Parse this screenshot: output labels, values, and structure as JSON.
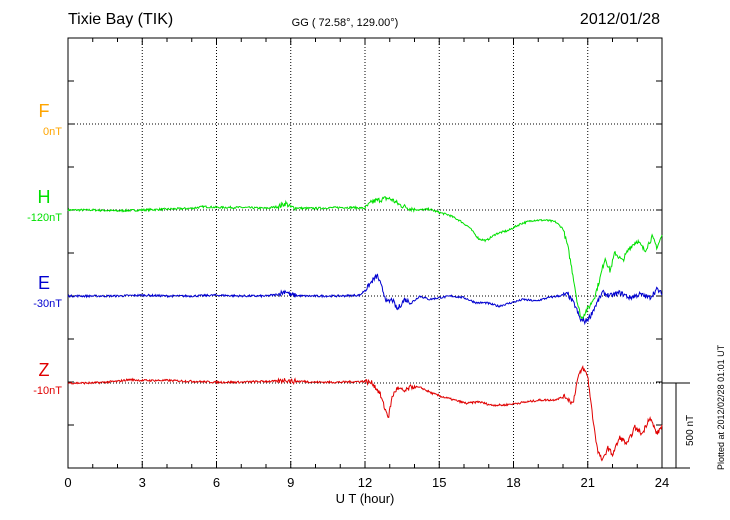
{
  "header": {
    "station": "Tixie Bay (TIK)",
    "coords": "GG ( 72.58°, 129.00°)",
    "date": "2012/01/28"
  },
  "footer": {
    "plotted": "Plotted at 2012/02/28 01:01 UT",
    "scale_label": "500 nT"
  },
  "colors": {
    "F": "#ffa500",
    "H": "#00e000",
    "E": "#0000d0",
    "Z": "#e00000"
  },
  "chart_data": {
    "type": "line",
    "xlabel": "U T (hour)",
    "xlim": [
      0,
      24
    ],
    "xticks": [
      "0",
      "3",
      "6",
      "9",
      "12",
      "15",
      "18",
      "21",
      "24"
    ],
    "scale_bar_nT": 500,
    "series": [
      {
        "name": "F",
        "baseline_label": "0nT",
        "x": [],
        "y": []
      },
      {
        "name": "H",
        "baseline_label": "-120nT",
        "x": [
          0,
          1,
          2,
          3,
          4,
          5,
          5.5,
          6,
          7,
          8,
          8.5,
          8.8,
          9,
          9.5,
          10,
          11,
          11.5,
          12,
          12.3,
          12.6,
          12.9,
          13.1,
          13.4,
          13.8,
          14.2,
          14.6,
          15,
          15.4,
          15.8,
          16.2,
          16.6,
          16.9,
          17.3,
          17.8,
          18.3,
          18.8,
          19.3,
          19.7,
          20.0,
          20.2,
          20.4,
          20.6,
          20.75,
          20.9,
          21.1,
          21.3,
          21.5,
          21.7,
          21.9,
          22.1,
          22.4,
          22.7,
          23.0,
          23.3,
          23.6,
          23.8,
          24
        ],
        "y": [
          0,
          0,
          -5,
          0,
          5,
          10,
          20,
          15,
          15,
          10,
          20,
          40,
          15,
          10,
          10,
          15,
          15,
          10,
          50,
          60,
          70,
          60,
          30,
          10,
          0,
          5,
          -15,
          -30,
          -60,
          -100,
          -170,
          -180,
          -140,
          -120,
          -80,
          -60,
          -60,
          -70,
          -110,
          -220,
          -380,
          -560,
          -640,
          -600,
          -560,
          -500,
          -400,
          -280,
          -360,
          -250,
          -300,
          -220,
          -180,
          -240,
          -160,
          -220,
          -150
        ]
      },
      {
        "name": "E",
        "baseline_label": "-30nT",
        "x": [
          0,
          1,
          2,
          3,
          4,
          5,
          6,
          7,
          8,
          8.5,
          8.8,
          9,
          9.5,
          10,
          11,
          11.8,
          12.1,
          12.3,
          12.5,
          12.7,
          12.9,
          13.1,
          13.3,
          13.6,
          13.9,
          14.2,
          14.6,
          15,
          15.5,
          16,
          16.5,
          16.9,
          17.4,
          17.9,
          18.4,
          18.9,
          19.4,
          19.8,
          20.2,
          20.5,
          20.7,
          20.9,
          21.1,
          21.3,
          21.6,
          21.9,
          22.3,
          22.7,
          23.1,
          23.5,
          23.8,
          24
        ],
        "y": [
          0,
          0,
          0,
          5,
          0,
          0,
          5,
          0,
          0,
          10,
          30,
          5,
          0,
          0,
          0,
          5,
          50,
          90,
          120,
          40,
          -40,
          -20,
          -80,
          -20,
          -40,
          0,
          -20,
          -10,
          0,
          -10,
          -40,
          -40,
          -60,
          -40,
          -20,
          -30,
          -10,
          0,
          10,
          -60,
          -140,
          -150,
          -120,
          -60,
          20,
          0,
          20,
          -10,
          10,
          -10,
          40,
          10
        ]
      },
      {
        "name": "Z",
        "baseline_label": "-10nT",
        "x": [
          0,
          1,
          2,
          2.5,
          3,
          4,
          5,
          6,
          7,
          8,
          8.5,
          8.8,
          9,
          9.5,
          10,
          11,
          12,
          12.3,
          12.6,
          12.8,
          12.95,
          13.1,
          13.3,
          13.6,
          13.9,
          14.3,
          14.7,
          15.1,
          15.6,
          16.1,
          16.6,
          17.1,
          17.6,
          18.1,
          18.6,
          19.1,
          19.6,
          20.1,
          20.4,
          20.6,
          20.8,
          21.0,
          21.2,
          21.4,
          21.6,
          21.8,
          22.0,
          22.3,
          22.6,
          22.9,
          23.2,
          23.5,
          23.8,
          24
        ],
        "y": [
          0,
          0,
          10,
          20,
          15,
          15,
          10,
          5,
          5,
          10,
          10,
          20,
          10,
          10,
          5,
          5,
          10,
          0,
          -60,
          -150,
          -200,
          -80,
          -30,
          -50,
          -20,
          -30,
          -60,
          -80,
          -100,
          -120,
          -110,
          -130,
          -130,
          -120,
          -110,
          -100,
          -100,
          -80,
          -120,
          30,
          90,
          40,
          -200,
          -400,
          -460,
          -380,
          -420,
          -320,
          -360,
          -260,
          -300,
          -200,
          -300,
          -250
        ]
      }
    ]
  }
}
